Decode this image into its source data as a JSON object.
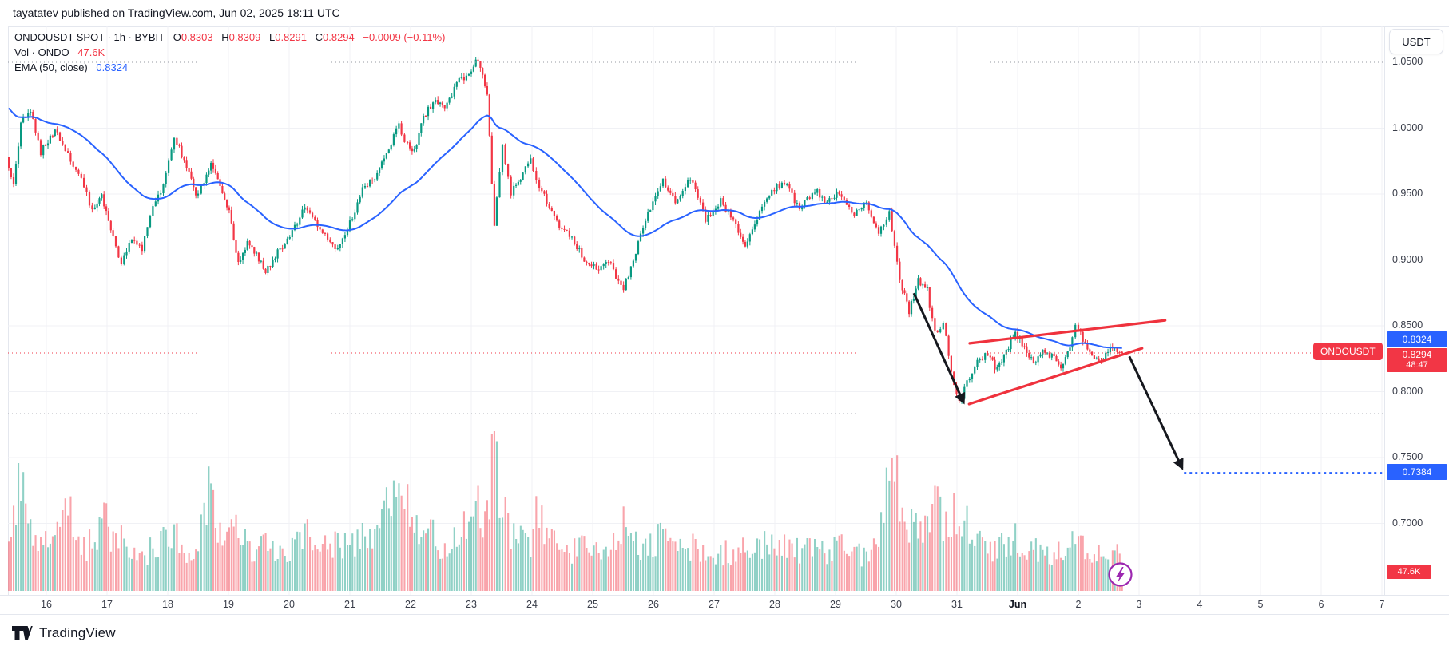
{
  "header": {
    "published": "tayatatev published on TradingView.com, Jun 02, 2025 18:11 UTC"
  },
  "toolbar": {
    "currency_button": "USDT"
  },
  "legend": {
    "title": "ONDOUSDT SPOT · 1h · BYBIT",
    "ohlc": {
      "o_key": "O",
      "o": "0.8303",
      "h_key": "H",
      "h": "0.8309",
      "l_key": "L",
      "l": "0.8291",
      "c_key": "C",
      "c": "0.8294",
      "change": "−0.0009 (−0.11%)"
    },
    "volume_row": {
      "label": "Vol · ONDO",
      "value": "47.6K"
    },
    "ema_row": {
      "label": "EMA (50, close)",
      "value": "0.8324"
    }
  },
  "price_axis": {
    "ticks": [
      {
        "label": "1.0500",
        "price": 1.05,
        "grid": false
      },
      {
        "label": "1.0000",
        "price": 1.0
      },
      {
        "label": "0.9500",
        "price": 0.95
      },
      {
        "label": "0.9000",
        "price": 0.9
      },
      {
        "label": "0.8500",
        "price": 0.85
      },
      {
        "label": "0.8000",
        "price": 0.8
      },
      {
        "label": "0.7500",
        "price": 0.75
      },
      {
        "label": "0.7000",
        "price": 0.7
      }
    ],
    "ema_tag": "0.8324",
    "last_tag": {
      "symbol": "ONDOUSDT",
      "price": "0.8294",
      "countdown": "48:47"
    },
    "target_tag": "0.7384",
    "volume_tag": "47.6K"
  },
  "time_axis": {
    "labels": [
      {
        "text": "16",
        "day": 16
      },
      {
        "text": "17",
        "day": 17
      },
      {
        "text": "18",
        "day": 18
      },
      {
        "text": "19",
        "day": 19
      },
      {
        "text": "20",
        "day": 20
      },
      {
        "text": "21",
        "day": 21
      },
      {
        "text": "22",
        "day": 22
      },
      {
        "text": "23",
        "day": 23
      },
      {
        "text": "24",
        "day": 24
      },
      {
        "text": "25",
        "day": 25
      },
      {
        "text": "26",
        "day": 26
      },
      {
        "text": "27",
        "day": 27
      },
      {
        "text": "28",
        "day": 28
      },
      {
        "text": "29",
        "day": 29
      },
      {
        "text": "30",
        "day": 30
      },
      {
        "text": "31",
        "day": 31
      },
      {
        "text": "Jun",
        "day": 32,
        "bold": true
      },
      {
        "text": "2",
        "day": 33
      },
      {
        "text": "3",
        "day": 34
      },
      {
        "text": "4",
        "day": 35
      },
      {
        "text": "5",
        "day": 36
      },
      {
        "text": "6",
        "day": 37
      },
      {
        "text": "7",
        "day": 38
      }
    ]
  },
  "footer": {
    "logo_text": "TradingView"
  },
  "colors": {
    "up": "#089981",
    "down": "#f23645",
    "vol_up": "rgba(8,153,129,0.45)",
    "vol_down": "rgba(242,54,69,0.45)",
    "ema": "#2962ff",
    "grid": "#f0f1f5",
    "drawing_red": "#ef323d",
    "drawing_black": "#16181e",
    "level_gray": "#9598a1",
    "target_blue": "#2962ff",
    "last_price_red": "#f23645",
    "sticker_purple": "#9c27b0"
  },
  "chart_data": {
    "type": "candlestick",
    "symbol": "ONDOUSDT",
    "exchange": "BYBIT",
    "interval": "1h",
    "note": "x domain in day units: 16 = May 16, 32 = Jun 1; anchors are [day, price, volume_fraction] keypoints of the hourly series read from the chart",
    "x_domain_days": [
      15.38,
      38
    ],
    "price_axis_range_visible": [
      0.649,
      1.076
    ],
    "ohlc_last": [
      0.8303,
      0.8309,
      0.8291,
      0.8294
    ],
    "last_volume_label": "47.6K",
    "ema": {
      "period": 50,
      "seed": 1.017,
      "last_value": 0.8324
    },
    "anchors": [
      [
        15.38,
        0.978,
        0.3
      ],
      [
        15.5,
        0.956,
        0.52
      ],
      [
        15.62,
        1.004,
        0.66
      ],
      [
        15.78,
        1.012,
        0.38
      ],
      [
        15.95,
        0.982,
        0.26
      ],
      [
        16.18,
        0.999,
        0.3
      ],
      [
        16.4,
        0.979,
        0.5
      ],
      [
        16.62,
        0.962,
        0.24
      ],
      [
        16.8,
        0.936,
        0.3
      ],
      [
        16.95,
        0.95,
        0.44
      ],
      [
        17.1,
        0.922,
        0.36
      ],
      [
        17.28,
        0.898,
        0.3
      ],
      [
        17.45,
        0.917,
        0.22
      ],
      [
        17.62,
        0.908,
        0.2
      ],
      [
        17.8,
        0.94,
        0.26
      ],
      [
        17.97,
        0.956,
        0.3
      ],
      [
        18.15,
        0.993,
        0.36
      ],
      [
        18.35,
        0.971,
        0.25
      ],
      [
        18.5,
        0.948,
        0.3
      ],
      [
        18.6,
        0.955,
        0.4
      ],
      [
        18.75,
        0.975,
        0.62
      ],
      [
        18.9,
        0.955,
        0.35
      ],
      [
        19.05,
        0.938,
        0.42
      ],
      [
        19.2,
        0.896,
        0.38
      ],
      [
        19.35,
        0.914,
        0.25
      ],
      [
        19.5,
        0.904,
        0.22
      ],
      [
        19.65,
        0.891,
        0.28
      ],
      [
        19.85,
        0.906,
        0.22
      ],
      [
        20.05,
        0.917,
        0.26
      ],
      [
        20.3,
        0.94,
        0.38
      ],
      [
        20.55,
        0.923,
        0.26
      ],
      [
        20.8,
        0.907,
        0.28
      ],
      [
        21.0,
        0.923,
        0.26
      ],
      [
        21.25,
        0.953,
        0.33
      ],
      [
        21.45,
        0.962,
        0.36
      ],
      [
        21.68,
        0.985,
        0.58
      ],
      [
        21.85,
        1.002,
        0.6
      ],
      [
        21.95,
        0.99,
        0.55
      ],
      [
        22.1,
        0.982,
        0.34
      ],
      [
        22.25,
        1.009,
        0.4
      ],
      [
        22.45,
        1.021,
        0.32
      ],
      [
        22.6,
        1.014,
        0.28
      ],
      [
        22.8,
        1.034,
        0.34
      ],
      [
        23.0,
        1.042,
        0.38
      ],
      [
        23.15,
        1.053,
        0.48
      ],
      [
        23.3,
        1.028,
        0.44
      ],
      [
        23.42,
        0.926,
        0.9
      ],
      [
        23.56,
        0.986,
        0.54
      ],
      [
        23.7,
        0.951,
        0.34
      ],
      [
        23.85,
        0.962,
        0.3
      ],
      [
        24.02,
        0.978,
        0.3
      ],
      [
        24.12,
        0.961,
        0.45
      ],
      [
        24.45,
        0.928,
        0.27
      ],
      [
        24.7,
        0.917,
        0.24
      ],
      [
        24.9,
        0.901,
        0.27
      ],
      [
        25.1,
        0.893,
        0.25
      ],
      [
        25.3,
        0.899,
        0.22
      ],
      [
        25.55,
        0.877,
        0.42
      ],
      [
        25.75,
        0.906,
        0.3
      ],
      [
        25.95,
        0.935,
        0.27
      ],
      [
        26.2,
        0.961,
        0.32
      ],
      [
        26.4,
        0.944,
        0.25
      ],
      [
        26.65,
        0.962,
        0.28
      ],
      [
        26.9,
        0.931,
        0.25
      ],
      [
        27.15,
        0.945,
        0.22
      ],
      [
        27.4,
        0.927,
        0.25
      ],
      [
        27.55,
        0.911,
        0.32
      ],
      [
        27.75,
        0.931,
        0.27
      ],
      [
        27.95,
        0.951,
        0.3
      ],
      [
        28.2,
        0.959,
        0.28
      ],
      [
        28.45,
        0.938,
        0.25
      ],
      [
        28.7,
        0.953,
        0.24
      ],
      [
        28.9,
        0.944,
        0.22
      ],
      [
        29.1,
        0.951,
        0.27
      ],
      [
        29.35,
        0.934,
        0.24
      ],
      [
        29.55,
        0.943,
        0.22
      ],
      [
        29.75,
        0.919,
        0.28
      ],
      [
        29.93,
        0.936,
        0.85
      ],
      [
        30.1,
        0.884,
        0.55
      ],
      [
        30.25,
        0.861,
        0.44
      ],
      [
        30.4,
        0.885,
        0.38
      ],
      [
        30.55,
        0.877,
        0.34
      ],
      [
        30.68,
        0.844,
        0.64
      ],
      [
        30.82,
        0.853,
        0.4
      ],
      [
        30.95,
        0.814,
        0.46
      ],
      [
        31.08,
        0.792,
        0.55
      ],
      [
        31.25,
        0.812,
        0.36
      ],
      [
        31.42,
        0.825,
        0.3
      ],
      [
        31.55,
        0.829,
        0.27
      ],
      [
        31.7,
        0.816,
        0.25
      ],
      [
        31.85,
        0.831,
        0.28
      ],
      [
        32.0,
        0.845,
        0.32
      ],
      [
        32.15,
        0.833,
        0.27
      ],
      [
        32.3,
        0.821,
        0.25
      ],
      [
        32.45,
        0.832,
        0.22
      ],
      [
        32.6,
        0.827,
        0.22
      ],
      [
        32.75,
        0.818,
        0.26
      ],
      [
        32.9,
        0.834,
        0.3
      ],
      [
        33.0,
        0.849,
        0.32
      ],
      [
        33.15,
        0.837,
        0.25
      ],
      [
        33.3,
        0.827,
        0.22
      ],
      [
        33.45,
        0.825,
        0.2
      ],
      [
        33.6,
        0.834,
        0.22
      ],
      [
        33.76,
        0.8294,
        0.24
      ]
    ],
    "levels": [
      {
        "role": "high-level-dotted",
        "price": 1.05,
        "color": "#9598a1",
        "dash": "1,4",
        "width": 1
      },
      {
        "role": "support-level-dotted",
        "price": 0.7833,
        "color": "#9598a1",
        "dash": "1,4",
        "width": 1
      },
      {
        "role": "last-price-line",
        "price": 0.8294,
        "color": "#f23645",
        "dash": "1,4",
        "width": 1
      },
      {
        "role": "target-line",
        "price": 0.7384,
        "color": "#2962ff",
        "dash": "3,4",
        "width": 2,
        "from_day": 34.74
      }
    ],
    "drawings": {
      "trendlines": [
        {
          "name": "pennant-lower",
          "d1": 31.2,
          "p1": 0.7906,
          "d2": 34.05,
          "p2": 0.833
        },
        {
          "name": "pennant-upper",
          "d1": 31.21,
          "p1": 0.8367,
          "d2": 34.43,
          "p2": 0.8542
        }
      ],
      "arrows": [
        {
          "name": "breakdown-arrow-1",
          "d1": 30.29,
          "p1": 0.8748,
          "d2": 31.11,
          "p2": 0.7918
        },
        {
          "name": "breakdown-arrow-2",
          "d1": 33.84,
          "p1": 0.8267,
          "d2": 34.71,
          "p2": 0.742
        }
      ]
    }
  }
}
